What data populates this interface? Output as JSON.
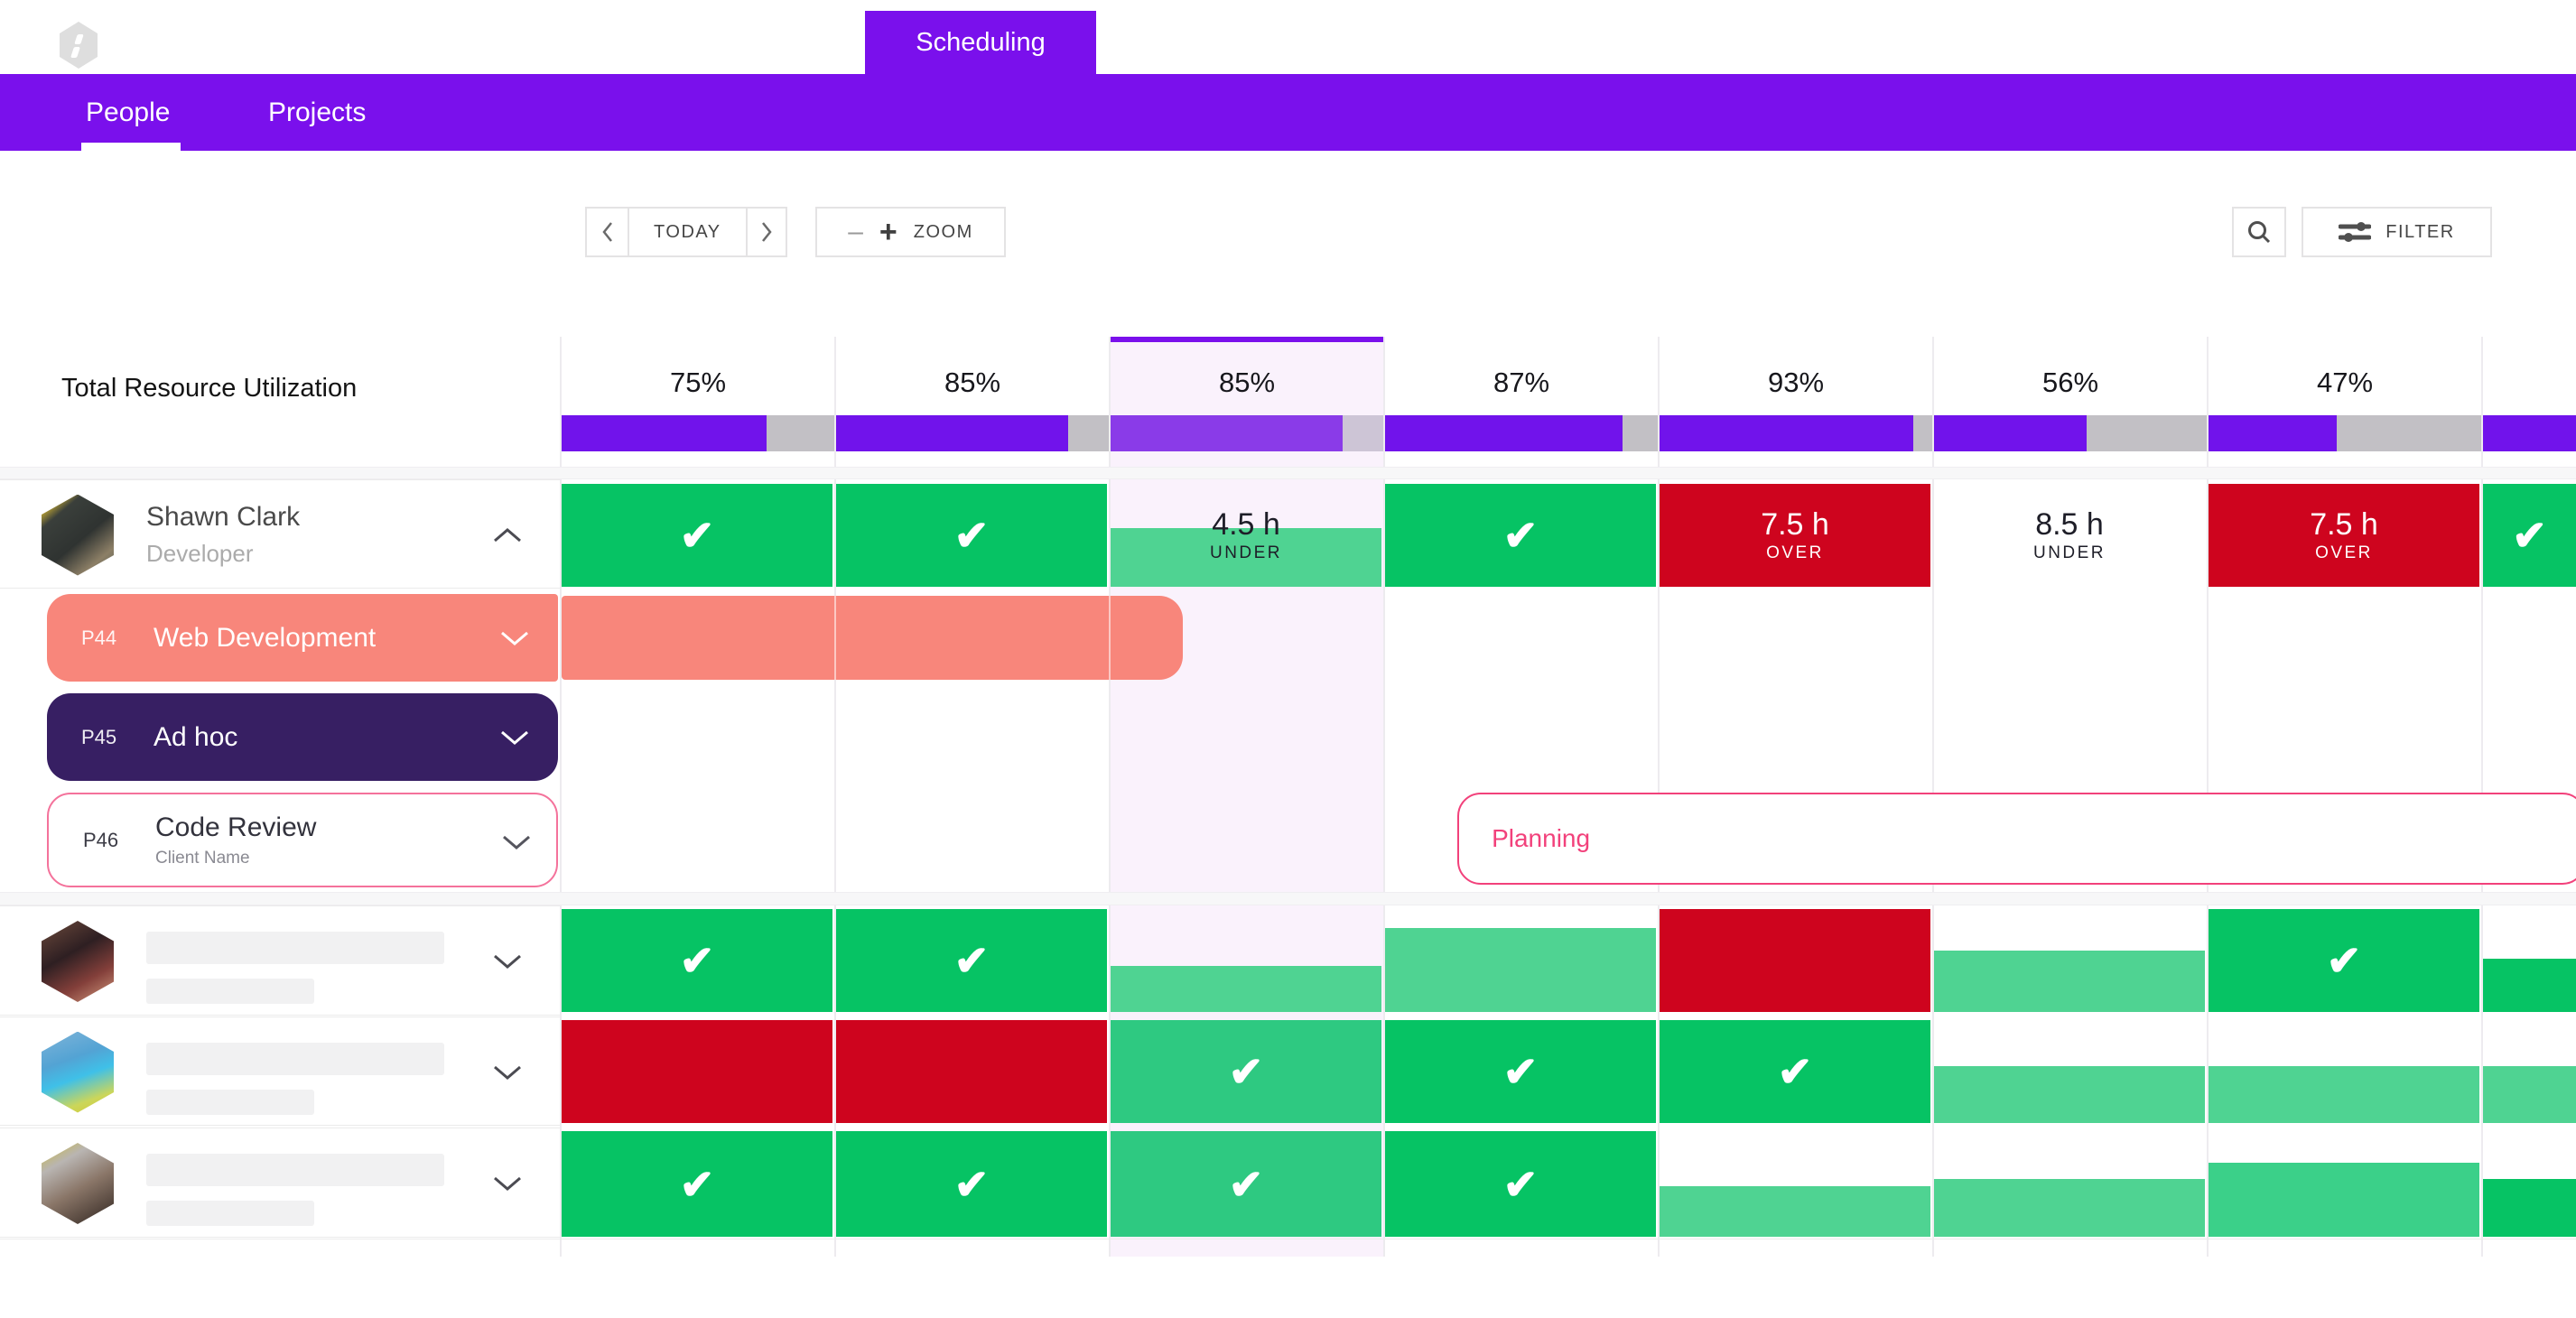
{
  "chrome": {
    "product_tab": "Scheduling",
    "nav": [
      {
        "label": "People",
        "active": true
      },
      {
        "label": "Projects",
        "active": false
      }
    ]
  },
  "toolbar": {
    "today": "TODAY",
    "zoom": "ZOOM",
    "filter": "FILTER",
    "minus": "–",
    "plus": "+"
  },
  "utilization": {
    "title": "Total Resource Utilization",
    "today_column_index": 2,
    "columns": [
      {
        "label": "75%",
        "value": 75
      },
      {
        "label": "85%",
        "value": 85
      },
      {
        "label": "85%",
        "value": 85
      },
      {
        "label": "87%",
        "value": 87
      },
      {
        "label": "93%",
        "value": 93
      },
      {
        "label": "56%",
        "value": 56
      },
      {
        "label": "47%",
        "value": 47
      },
      {
        "label": "",
        "value": 100
      }
    ]
  },
  "rows": [
    {
      "type": "person",
      "name": "Shawn Clark",
      "role": "Developer",
      "expanded": true,
      "avatar": "photo-1",
      "cells": [
        {
          "kind": "check"
        },
        {
          "kind": "check"
        },
        {
          "kind": "under_partial",
          "hours": "4.5 h",
          "status": "UNDER",
          "fill_pct": 57
        },
        {
          "kind": "check"
        },
        {
          "kind": "over",
          "hours": "7.5 h",
          "status": "OVER"
        },
        {
          "kind": "under_plain",
          "hours": "8.5 h",
          "status": "UNDER"
        },
        {
          "kind": "over",
          "hours": "7.5 h",
          "status": "OVER"
        },
        {
          "kind": "check"
        }
      ]
    },
    {
      "type": "project",
      "code": "P44",
      "name": "Web Development",
      "client": "",
      "variant": "salmon",
      "collapsed": true,
      "timeline_bar": {
        "from_col": 0,
        "to_col": 2.27
      }
    },
    {
      "type": "project",
      "code": "P45",
      "name": "Ad hoc",
      "client": "",
      "variant": "dark",
      "collapsed": true
    },
    {
      "type": "project",
      "code": "P46",
      "name": "Code Review",
      "client": "Client Name",
      "variant": "outline",
      "collapsed": true,
      "timeline_card": {
        "label": "Planning",
        "from_col": 3.27
      }
    },
    {
      "type": "person_skeleton",
      "avatar": "photo-2",
      "expanded": false,
      "cells": [
        {
          "kind": "check"
        },
        {
          "kind": "check"
        },
        {
          "kind": "today_fill",
          "fill_pct": 45
        },
        {
          "kind": "fill",
          "tone": "light",
          "fill_pct": 82
        },
        {
          "kind": "red"
        },
        {
          "kind": "fill",
          "tone": "light",
          "fill_pct": 60
        },
        {
          "kind": "check"
        },
        {
          "kind": "fill",
          "tone": "bright",
          "fill_pct": 52
        }
      ]
    },
    {
      "type": "person_skeleton",
      "avatar": "photo-3",
      "expanded": false,
      "cells": [
        {
          "kind": "red"
        },
        {
          "kind": "red"
        },
        {
          "kind": "check_med"
        },
        {
          "kind": "check"
        },
        {
          "kind": "check"
        },
        {
          "kind": "fill",
          "tone": "light",
          "fill_pct": 55
        },
        {
          "kind": "fill",
          "tone": "light",
          "fill_pct": 55
        },
        {
          "kind": "fill",
          "tone": "light",
          "fill_pct": 55
        }
      ]
    },
    {
      "type": "person_skeleton",
      "avatar": "photo-4",
      "expanded": false,
      "cells": [
        {
          "kind": "check"
        },
        {
          "kind": "check"
        },
        {
          "kind": "check_med"
        },
        {
          "kind": "check"
        },
        {
          "kind": "fill",
          "tone": "light",
          "fill_pct": 48
        },
        {
          "kind": "fill",
          "tone": "light",
          "fill_pct": 55
        },
        {
          "kind": "fill",
          "tone": "medium",
          "fill_pct": 70
        },
        {
          "kind": "fill",
          "tone": "bright",
          "fill_pct": 55
        }
      ]
    }
  ],
  "colors": {
    "purple": "#7a10ec",
    "util_bar": "#7113eb",
    "util_bar_today": "#8a3be8",
    "util_rest": "#c2c0c5",
    "util_rest_today": "#cdc5d6",
    "today_tint": "#faf2fc",
    "green_bright": "#06c364",
    "green_medium": "#2ec981",
    "green_light": "#4fd392",
    "red": "#ce041e",
    "salmon": "#f8867b",
    "dark_purple": "#371f63",
    "pink": "#f2417b",
    "pink_light": "#f4729b",
    "gridline": "#edebef"
  }
}
